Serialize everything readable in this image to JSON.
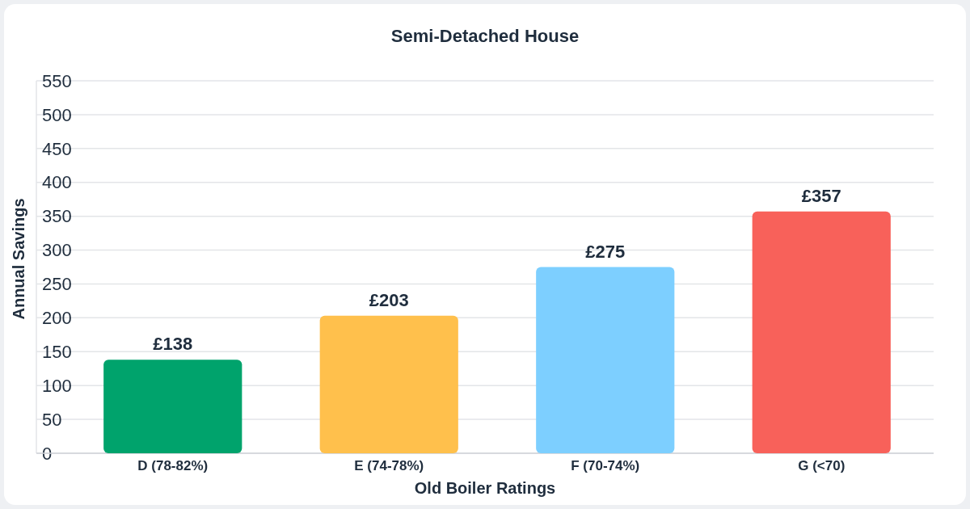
{
  "chart_data": {
    "type": "bar",
    "title": "Semi-Detached House",
    "xlabel": "Old Boiler Ratings",
    "ylabel": "Annual Savings",
    "categories": [
      "D (78-82%)",
      "E (74-78%)",
      "F (70-74%)",
      "G (<70)"
    ],
    "values": [
      138,
      203,
      275,
      357
    ],
    "colors": [
      "#00a36c",
      "#ffc04c",
      "#7dcfff",
      "#f8615a"
    ],
    "value_labels": [
      "£138",
      "£203",
      "£275",
      "£357"
    ],
    "ylim": [
      0,
      550
    ],
    "yticks": [
      0,
      50,
      100,
      150,
      200,
      250,
      300,
      350,
      400,
      450,
      500,
      550
    ],
    "grid": "y"
  }
}
